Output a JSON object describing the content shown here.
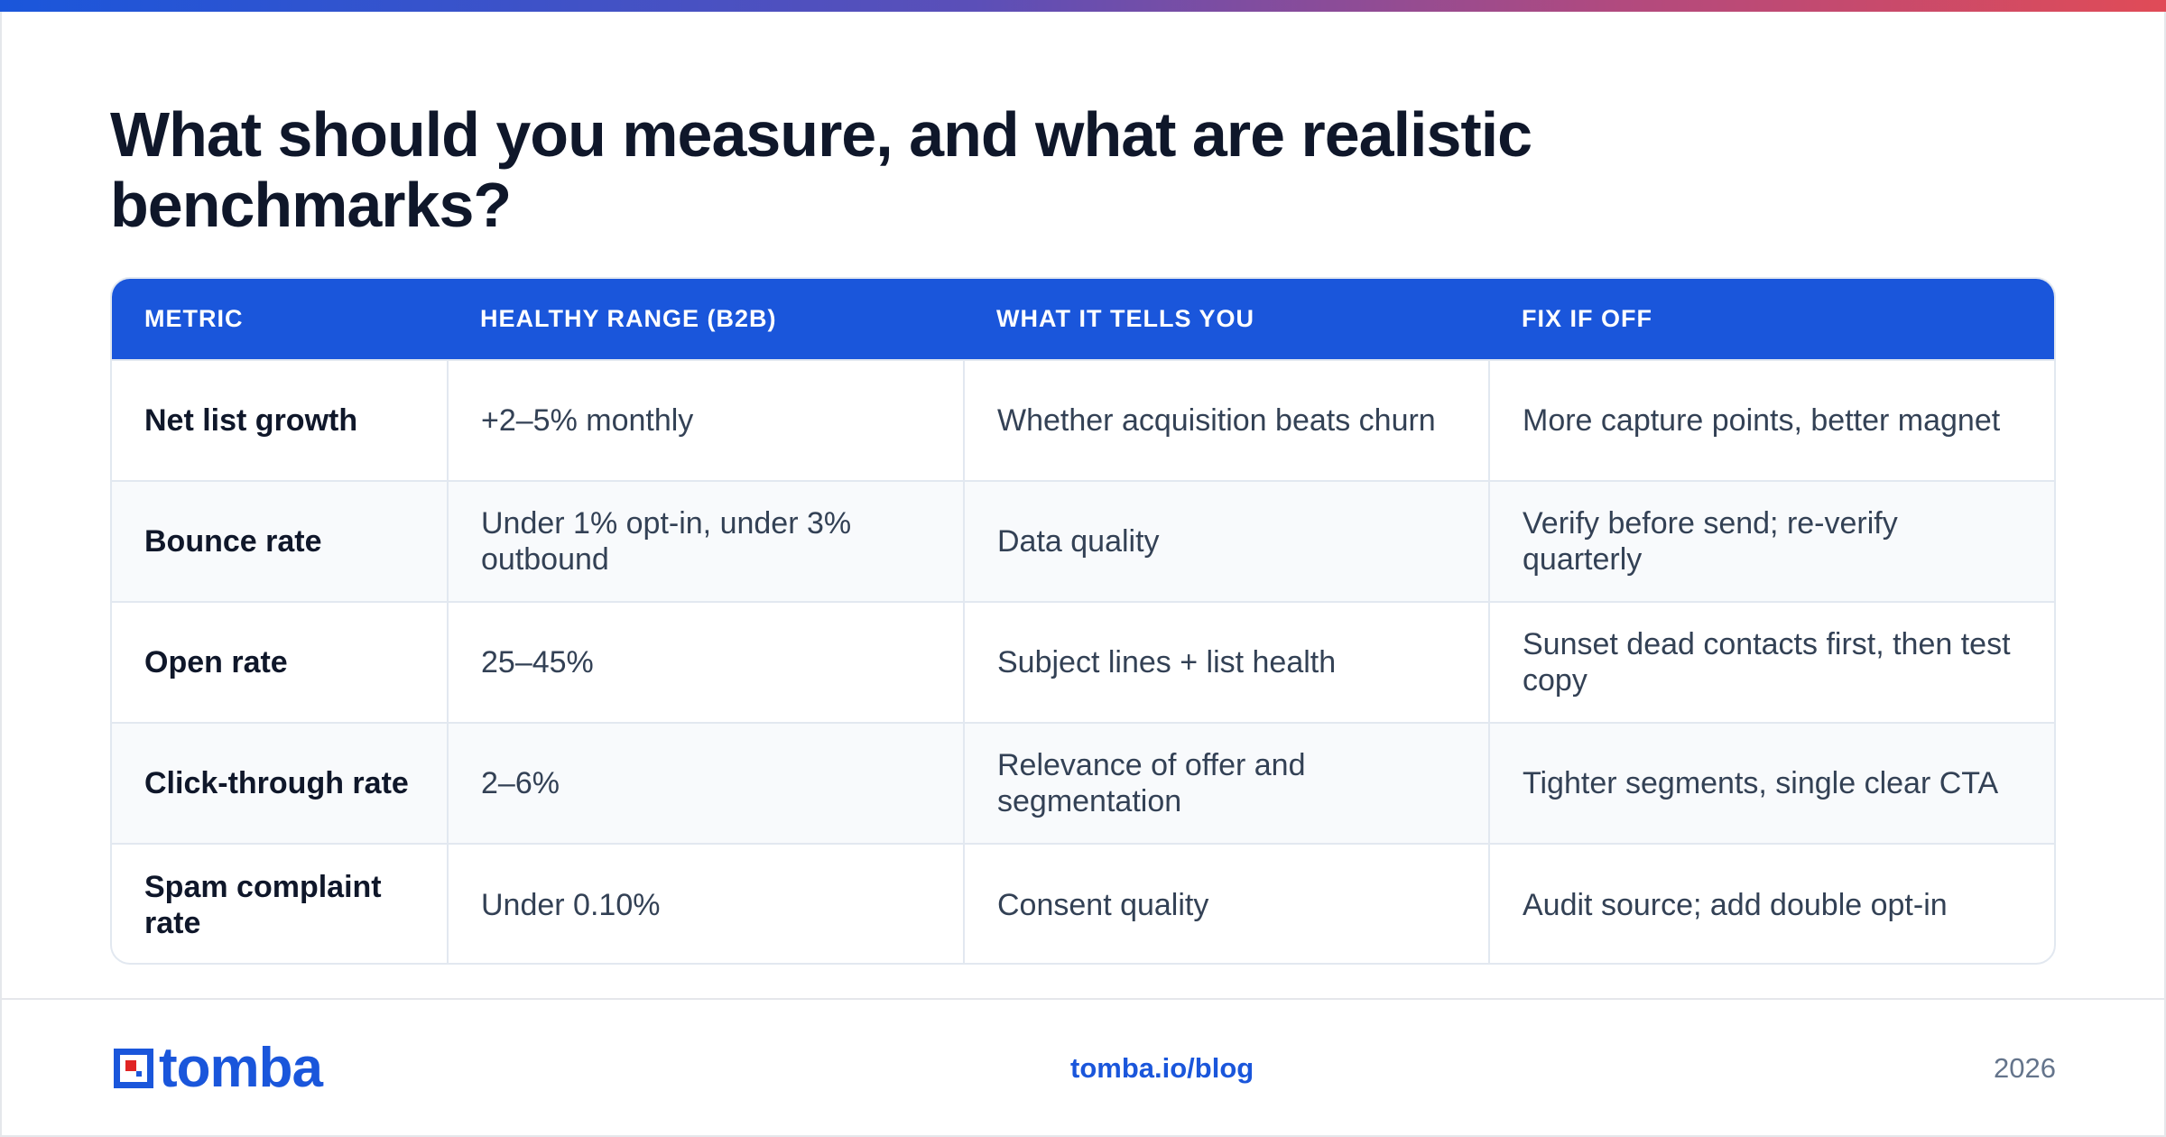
{
  "page": {
    "title": "What should you measure, and what are realistic benchmarks?"
  },
  "table": {
    "headers": [
      "METRIC",
      "HEALTHY RANGE (B2B)",
      "WHAT IT TELLS YOU",
      "FIX IF OFF"
    ],
    "rows": [
      [
        "Net list growth",
        "+2–5% monthly",
        "Whether acquisition beats churn",
        "More capture points, better magnet"
      ],
      [
        "Bounce rate",
        "Under 1% opt-in, under 3% outbound",
        "Data quality",
        "Verify before send; re-verify quarterly"
      ],
      [
        "Open rate",
        "25–45%",
        "Subject lines + list health",
        "Sunset dead contacts first, then test copy"
      ],
      [
        "Click-through rate",
        "2–6%",
        "Relevance of offer and segmentation",
        "Tighter segments, single clear CTA"
      ],
      [
        "Spam complaint rate",
        "Under 0.10%",
        "Consent quality",
        "Audit source; add double opt-in"
      ]
    ]
  },
  "footer": {
    "logo_text": "tomba",
    "logo_icon": "tomba-logo-icon",
    "link": "tomba.io/blog",
    "year": "2026"
  },
  "colors": {
    "brand_blue": "#1a56db",
    "gradient": [
      "#1a56db",
      "#5b4fb8",
      "#b24a7e",
      "#e04b57"
    ],
    "row_alt": "#f8fafc",
    "title_text": "#0f172a",
    "body_text": "#334155"
  }
}
